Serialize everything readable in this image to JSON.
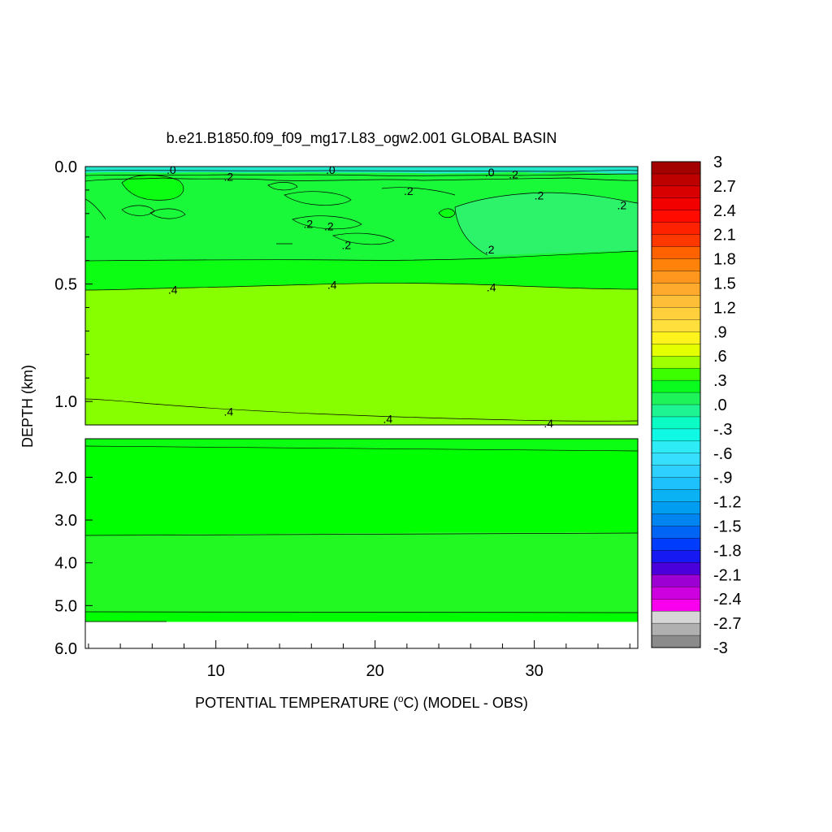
{
  "chart_data": {
    "type": "heatmap",
    "title": "b.e21.B1850.f09_f09_mg17.L83_ogw2.001 GLOBAL BASIN",
    "xlabel_main": "POTENTIAL TEMPERATURE (",
    "xlabel_sup": "o",
    "xlabel_rest": "C) (MODEL - OBS)",
    "ylabel": "DEPTH (km)",
    "xlim": [
      1.8,
      36.5
    ],
    "x_ticks": [
      {
        "value": 10,
        "label": "10"
      },
      {
        "value": 20,
        "label": "20"
      },
      {
        "value": 30,
        "label": "30"
      }
    ],
    "upper_panel": {
      "ylim": [
        0.0,
        1.1
      ],
      "y_ticks": [
        {
          "value": 0.0,
          "label": "0.0"
        },
        {
          "value": 0.5,
          "label": "0.5"
        },
        {
          "value": 1.0,
          "label": "1.0"
        }
      ],
      "contour_labels": [
        {
          "x": 7.2,
          "y": 0.01,
          "text": ".0"
        },
        {
          "x": 17.2,
          "y": 0.01,
          "text": ".0"
        },
        {
          "x": 27.2,
          "y": 0.02,
          "text": ".0"
        },
        {
          "x": 10.8,
          "y": 0.04,
          "text": ".2"
        },
        {
          "x": 28.7,
          "y": 0.03,
          "text": ".2"
        },
        {
          "x": 22.1,
          "y": 0.1,
          "text": ".2"
        },
        {
          "x": 30.3,
          "y": 0.12,
          "text": ".2"
        },
        {
          "x": 35.5,
          "y": 0.16,
          "text": ".2"
        },
        {
          "x": 15.8,
          "y": 0.24,
          "text": ".2"
        },
        {
          "x": 17.1,
          "y": 0.25,
          "text": ".2"
        },
        {
          "x": 18.2,
          "y": 0.33,
          "text": ".2"
        },
        {
          "x": 27.2,
          "y": 0.35,
          "text": ".2"
        },
        {
          "x": 7.3,
          "y": 0.52,
          "text": ".4"
        },
        {
          "x": 17.3,
          "y": 0.5,
          "text": ".4"
        },
        {
          "x": 27.3,
          "y": 0.51,
          "text": ".4"
        },
        {
          "x": 10.8,
          "y": 1.04,
          "text": ".4"
        },
        {
          "x": 20.8,
          "y": 1.07,
          "text": ".4"
        },
        {
          "x": 30.9,
          "y": 1.09,
          "text": ".4"
        }
      ]
    },
    "lower_panel": {
      "ylim": [
        1.1,
        6.0
      ],
      "y_ticks": [
        {
          "value": 2.0,
          "label": "2.0"
        },
        {
          "value": 3.0,
          "label": "3.0"
        },
        {
          "value": 4.0,
          "label": "4.0"
        },
        {
          "value": 5.0,
          "label": "5.0"
        },
        {
          "value": 6.0,
          "label": "6.0"
        }
      ],
      "data_bottom_depth": 5.38
    },
    "colorbar": {
      "range": [
        -3,
        3
      ],
      "step": 0.15,
      "labels": [
        "3",
        "2.7",
        "2.4",
        "2.1",
        "1.8",
        "1.5",
        "1.2",
        ".9",
        ".6",
        ".3",
        ".0",
        "-.3",
        "-.6",
        "-.9",
        "-1.2",
        "-1.5",
        "-1.8",
        "-2.1",
        "-2.4",
        "-2.7",
        "-3"
      ]
    },
    "colors": {
      "near_zero": "#2cf36a",
      "band_0_2": "#1af83a",
      "band_2_4": "#0cff12",
      "band_4_6": "#88ff00",
      "surface_cyan": "#22e6c8",
      "deep_band": "#00ff00",
      "deep_band_mid": "#22f822"
    }
  }
}
